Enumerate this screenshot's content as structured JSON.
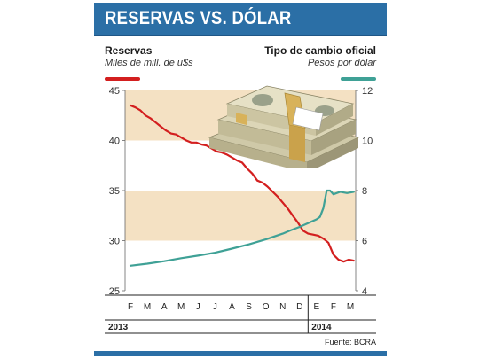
{
  "header": {
    "title": "RESERVAS VS. DÓLAR"
  },
  "legend": {
    "left_title": "Reservas",
    "left_sub": "Miles de mill. de u$s",
    "right_title": "Tipo de cambio oficial",
    "right_sub": "Pesos por dólar"
  },
  "source": "Fuente: BCRA",
  "colors": {
    "header": "#2b6fa6",
    "reservas": "#d31f1f",
    "tipo_cambio": "#3fa196",
    "band": "#f4e1c3"
  },
  "images": {
    "money": "stack-of-dollar-bills"
  },
  "chart_data": {
    "type": "line",
    "title": "RESERVAS VS. DÓLAR",
    "x_ticks": [
      "F",
      "M",
      "A",
      "M",
      "J",
      "J",
      "A",
      "S",
      "O",
      "N",
      "D",
      "E",
      "F",
      "M"
    ],
    "year_labels": [
      "2013",
      "2014"
    ],
    "y_left": {
      "label": "Reservas",
      "unit": "Miles de mill. de u$s",
      "ticks": [
        25,
        30,
        35,
        40,
        45
      ],
      "lim": [
        25,
        45
      ]
    },
    "y_right": {
      "label": "Tipo de cambio oficial",
      "unit": "Pesos por dólar",
      "ticks": [
        4,
        6,
        8,
        10,
        12
      ],
      "lim": [
        4,
        12
      ]
    },
    "bands": [
      [
        40,
        45
      ],
      [
        30,
        35
      ]
    ],
    "grid": false,
    "series": [
      {
        "name": "Reservas",
        "axis": "left",
        "color": "#d31f1f",
        "x": [
          0,
          0.3,
          0.6,
          0.9,
          1.2,
          1.5,
          1.8,
          2.1,
          2.4,
          2.7,
          3.0,
          3.3,
          3.6,
          3.9,
          4.2,
          4.5,
          4.8,
          5.1,
          5.4,
          5.7,
          6.0,
          6.3,
          6.6,
          6.9,
          7.2,
          7.5,
          7.8,
          8.1,
          8.4,
          8.7,
          9.0,
          9.3,
          9.6,
          9.9,
          10.2,
          10.5,
          10.8,
          11.1,
          11.4,
          11.7,
          12.0,
          12.3,
          12.6,
          12.9,
          13.2
        ],
        "values": [
          43.5,
          43.3,
          43.0,
          42.5,
          42.2,
          41.8,
          41.4,
          41.0,
          40.7,
          40.6,
          40.3,
          40.0,
          39.8,
          39.8,
          39.6,
          39.5,
          39.2,
          38.9,
          38.8,
          38.6,
          38.3,
          38.0,
          37.8,
          37.2,
          36.7,
          36.0,
          35.8,
          35.4,
          34.9,
          34.4,
          33.8,
          33.2,
          32.5,
          31.8,
          31.0,
          30.7,
          30.6,
          30.5,
          30.2,
          29.8,
          28.6,
          28.1,
          27.9,
          28.1,
          28.0
        ]
      },
      {
        "name": "Tipo de cambio oficial",
        "axis": "right",
        "color": "#3fa196",
        "x": [
          0,
          1,
          2,
          3,
          4,
          5,
          6,
          7,
          8,
          9,
          9.5,
          10,
          10.5,
          11,
          11.2,
          11.4,
          11.6,
          11.8,
          12.0,
          12.4,
          12.8,
          13.2
        ],
        "values": [
          5.0,
          5.08,
          5.18,
          5.3,
          5.4,
          5.52,
          5.68,
          5.85,
          6.05,
          6.28,
          6.42,
          6.55,
          6.7,
          6.85,
          6.95,
          7.3,
          8.0,
          8.0,
          7.85,
          7.95,
          7.9,
          7.95
        ]
      }
    ]
  }
}
